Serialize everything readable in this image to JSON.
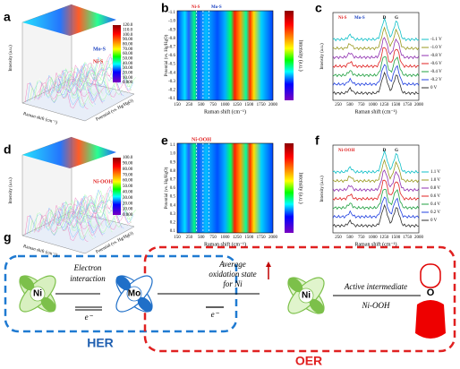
{
  "a": {
    "letter": "a",
    "y_label": "Intensity (a.u.)",
    "x_label": "Raman shift (cm⁻¹)",
    "z_label": "Potential (vs. Hg/HgO)",
    "notes": [
      "Mo-S",
      "Ni-S"
    ],
    "colorbar": [
      "120.0",
      "110.0",
      "100.0",
      "90.00",
      "80.00",
      "70.00",
      "60.00",
      "50.00",
      "40.00",
      "30.00",
      "20.00",
      "10.00",
      "0.000"
    ]
  },
  "b": {
    "letter": "b",
    "y_label": "Potential (vs. Hg/HgO)",
    "x_label": "Raman shift (cm⁻¹)",
    "bar_label": "Intensity (a.u.)",
    "yticks": [
      "-1.1",
      "-1.0",
      "-0.9",
      "-0.8",
      "-0.7",
      "-0.6",
      "-0.5",
      "-0.4",
      "-0.3",
      "-0.2",
      "-0.1"
    ],
    "xticks": [
      "150",
      "250",
      "500",
      "750",
      "1000",
      "1250",
      "1500",
      "1750",
      "2000"
    ],
    "notes": [
      "Ni-S",
      "Mo-S"
    ]
  },
  "c": {
    "letter": "c",
    "y_label": "Intensity (a.u.)",
    "x_label": "Raman shift (cm⁻¹)",
    "xticks": [
      "250",
      "500",
      "750",
      "1000",
      "1250",
      "1500",
      "1750",
      "2000"
    ],
    "notes": [
      "Ni-S",
      "Mo-S",
      "D",
      "G"
    ],
    "legend": [
      "-1.1 V",
      "-1.0 V",
      "-0.8 V",
      "-0.6 V",
      "-0.4 V",
      "-0.2 V",
      "0 V"
    ]
  },
  "d": {
    "letter": "d",
    "y_label": "Intensity (a.u.)",
    "x_label": "Raman shift (cm⁻¹)",
    "z_label": "Potential (vs. Hg/HgO)",
    "notes": [
      "Ni-OOH"
    ],
    "colorbar": [
      "100.0",
      "90.00",
      "80.00",
      "70.00",
      "60.00",
      "50.00",
      "40.00",
      "30.00",
      "20.00",
      "10.00",
      "0.000"
    ]
  },
  "e": {
    "letter": "e",
    "y_label": "Potential (vs. Hg/HgO)",
    "x_label": "Raman shift (cm⁻¹)",
    "bar_label": "Intensity (a.u.)",
    "yticks": [
      "1.1",
      "1.0",
      "0.9",
      "0.8",
      "0.7",
      "0.6",
      "0.5",
      "0.4",
      "0.3",
      "0.2",
      "0.1"
    ],
    "xticks": [
      "150",
      "250",
      "500",
      "750",
      "1000",
      "1250",
      "1500",
      "1750",
      "2000"
    ],
    "notes": [
      "Ni-OOH"
    ]
  },
  "f": {
    "letter": "f",
    "y_label": "Intensity (a.u.)",
    "x_label": "Raman shift (cm⁻¹)",
    "xticks": [
      "250",
      "500",
      "750",
      "1000",
      "1250",
      "1500",
      "1750",
      "2000"
    ],
    "notes": [
      "Ni-OOH",
      "D",
      "G"
    ],
    "legend": [
      "1.1 V",
      "1.0 V",
      "0.8 V",
      "0.6 V",
      "0.4 V",
      "0.2 V",
      "0 V"
    ]
  },
  "g": {
    "letter": "g",
    "ni": "Ni",
    "electron_interaction": "Electron interaction",
    "e1": "e⁻",
    "mo": "Mo",
    "average": "Average oxidation state for Ni",
    "e2": "e⁻",
    "ni2": "Ni",
    "active": "Active intermediate",
    "ni_ooh": "Ni-OOH",
    "o": "O",
    "her": "HER",
    "oer": "OER"
  }
}
